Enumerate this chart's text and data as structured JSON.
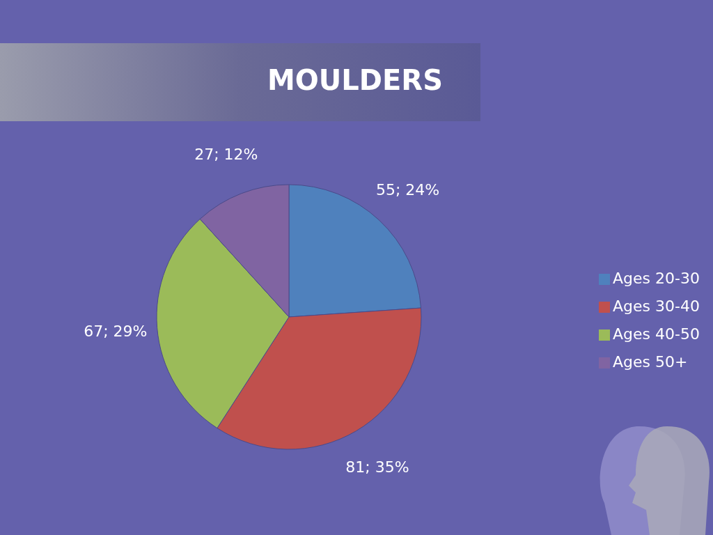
{
  "chart_data": {
    "type": "pie",
    "title": "MOULDERS",
    "categories": [
      "Ages 20-30",
      "Ages 30-40",
      "Ages 40-50",
      "Ages 50+"
    ],
    "values": [
      55,
      81,
      67,
      27
    ],
    "colors": [
      "#4f81bd",
      "#c0504d",
      "#9bbb59",
      "#8064a2"
    ],
    "value_labels": [
      "55; 24%",
      "81; 35%",
      "67; 29%",
      "27; 12%"
    ],
    "legend": "right"
  }
}
